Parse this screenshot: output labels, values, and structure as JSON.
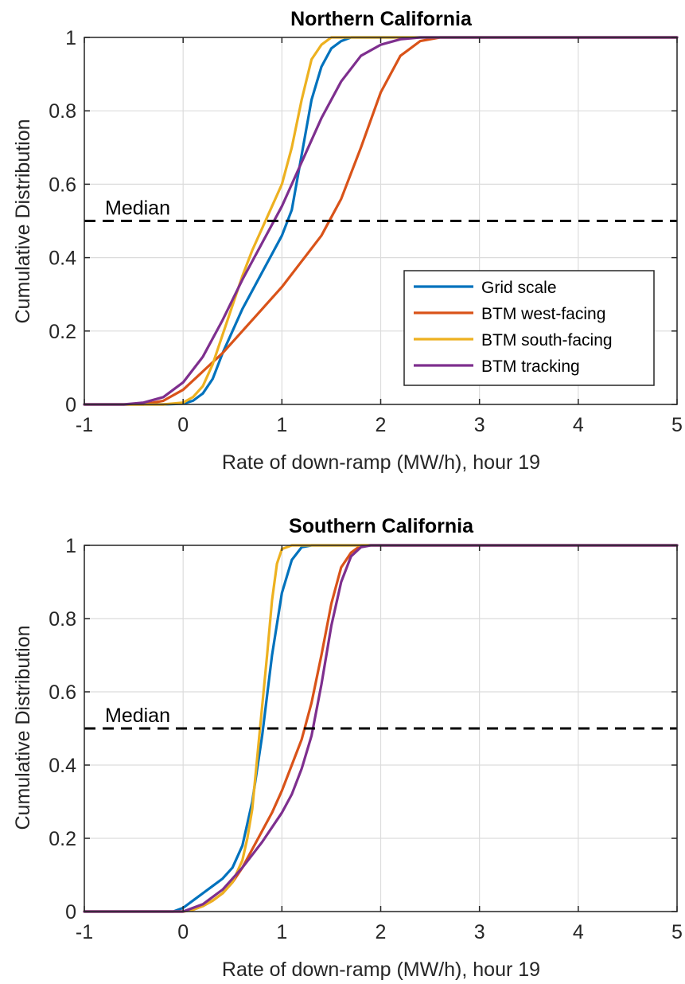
{
  "chart_data": [
    {
      "type": "line",
      "title": "Northern California",
      "xlabel": "Rate of down-ramp (MW/h), hour 19",
      "ylabel": "Cumulative Distribution",
      "xlim": [
        -1,
        5
      ],
      "ylim": [
        0,
        1
      ],
      "xticks": [
        "-1",
        "0",
        "1",
        "2",
        "3",
        "4",
        "5"
      ],
      "yticks": [
        "0",
        "0.2",
        "0.4",
        "0.6",
        "0.8",
        "1"
      ],
      "grid": true,
      "legend_position": "lower-right",
      "median_label": "Median",
      "median_value": 0.5,
      "series": [
        {
          "name": "Grid scale",
          "color": "#0072BD",
          "x": [
            -1,
            -0.2,
            0,
            0.1,
            0.2,
            0.3,
            0.4,
            0.5,
            0.6,
            0.7,
            0.8,
            0.9,
            1.0,
            1.1,
            1.2,
            1.3,
            1.4,
            1.5,
            1.6,
            1.7,
            1.8,
            2.0,
            5
          ],
          "y": [
            0,
            0,
            0.002,
            0.01,
            0.03,
            0.07,
            0.14,
            0.2,
            0.26,
            0.31,
            0.36,
            0.41,
            0.46,
            0.53,
            0.68,
            0.83,
            0.92,
            0.97,
            0.99,
            1.0,
            1.0,
            1.0,
            1.0
          ]
        },
        {
          "name": "BTM west-facing",
          "color": "#D95319",
          "x": [
            -1,
            -0.4,
            -0.2,
            0,
            0.2,
            0.4,
            0.6,
            0.8,
            1.0,
            1.2,
            1.4,
            1.6,
            1.8,
            2.0,
            2.2,
            2.4,
            2.6,
            2.8,
            5
          ],
          "y": [
            0,
            0,
            0.01,
            0.04,
            0.09,
            0.14,
            0.2,
            0.26,
            0.32,
            0.39,
            0.46,
            0.56,
            0.7,
            0.85,
            0.95,
            0.99,
            1.0,
            1.0,
            1.0
          ]
        },
        {
          "name": "BTM south-facing",
          "color": "#EDB120",
          "x": [
            -1,
            -0.2,
            0,
            0.1,
            0.2,
            0.3,
            0.4,
            0.5,
            0.6,
            0.7,
            0.8,
            0.9,
            1.0,
            1.1,
            1.2,
            1.3,
            1.4,
            1.5,
            1.6,
            1.7,
            5
          ],
          "y": [
            0,
            0,
            0.005,
            0.02,
            0.05,
            0.11,
            0.19,
            0.27,
            0.35,
            0.42,
            0.48,
            0.54,
            0.6,
            0.7,
            0.83,
            0.94,
            0.98,
            1.0,
            1.0,
            1.0,
            1.0
          ]
        },
        {
          "name": "BTM tracking",
          "color": "#7E2F8E",
          "x": [
            -1,
            -0.6,
            -0.4,
            -0.2,
            0,
            0.2,
            0.4,
            0.6,
            0.8,
            1.0,
            1.2,
            1.4,
            1.6,
            1.8,
            2.0,
            2.2,
            2.4,
            2.6,
            2.8,
            3.0,
            5
          ],
          "y": [
            0,
            0,
            0.005,
            0.02,
            0.06,
            0.13,
            0.23,
            0.34,
            0.44,
            0.54,
            0.66,
            0.78,
            0.88,
            0.95,
            0.98,
            0.995,
            1.0,
            1.0,
            1.0,
            1.0,
            1.0
          ]
        }
      ]
    },
    {
      "type": "line",
      "title": "Southern California",
      "xlabel": "Rate of down-ramp (MW/h), hour 19",
      "ylabel": "Cumulative Distribution",
      "xlim": [
        -1,
        5
      ],
      "ylim": [
        0,
        1
      ],
      "xticks": [
        "-1",
        "0",
        "1",
        "2",
        "3",
        "4",
        "5"
      ],
      "yticks": [
        "0",
        "0.2",
        "0.4",
        "0.6",
        "0.8",
        "1"
      ],
      "grid": true,
      "median_label": "Median",
      "median_value": 0.5,
      "series": [
        {
          "name": "Grid scale",
          "color": "#0072BD",
          "x": [
            -1,
            -0.1,
            0,
            0.1,
            0.2,
            0.3,
            0.4,
            0.5,
            0.6,
            0.7,
            0.8,
            0.9,
            1.0,
            1.1,
            1.2,
            1.3,
            5
          ],
          "y": [
            0,
            0,
            0.01,
            0.03,
            0.05,
            0.07,
            0.09,
            0.12,
            0.18,
            0.3,
            0.48,
            0.7,
            0.87,
            0.96,
            0.995,
            1.0,
            1.0
          ]
        },
        {
          "name": "BTM west-facing",
          "color": "#D95319",
          "x": [
            -1,
            0,
            0.1,
            0.2,
            0.3,
            0.4,
            0.5,
            0.6,
            0.7,
            0.8,
            0.9,
            1.0,
            1.1,
            1.2,
            1.3,
            1.4,
            1.5,
            1.6,
            1.7,
            1.8,
            1.9,
            5
          ],
          "y": [
            0,
            0,
            0.005,
            0.015,
            0.03,
            0.05,
            0.08,
            0.12,
            0.17,
            0.22,
            0.27,
            0.33,
            0.4,
            0.47,
            0.57,
            0.7,
            0.84,
            0.94,
            0.98,
            1.0,
            1.0,
            1.0
          ]
        },
        {
          "name": "BTM south-facing",
          "color": "#EDB120",
          "x": [
            -1,
            0,
            0.1,
            0.2,
            0.3,
            0.4,
            0.5,
            0.6,
            0.65,
            0.7,
            0.75,
            0.8,
            0.85,
            0.9,
            0.95,
            1.0,
            1.1,
            1.2,
            1.3,
            5
          ],
          "y": [
            0,
            0,
            0.005,
            0.015,
            0.03,
            0.05,
            0.08,
            0.14,
            0.2,
            0.28,
            0.42,
            0.56,
            0.7,
            0.85,
            0.95,
            0.99,
            1.0,
            1.0,
            1.0,
            1.0
          ]
        },
        {
          "name": "BTM tracking",
          "color": "#7E2F8E",
          "x": [
            -1,
            0,
            0.2,
            0.4,
            0.6,
            0.8,
            1.0,
            1.1,
            1.2,
            1.3,
            1.4,
            1.5,
            1.6,
            1.7,
            1.8,
            1.9,
            2.0,
            5
          ],
          "y": [
            0,
            0,
            0.02,
            0.06,
            0.12,
            0.19,
            0.27,
            0.32,
            0.39,
            0.48,
            0.62,
            0.78,
            0.9,
            0.97,
            0.995,
            1.0,
            1.0,
            1.0
          ]
        }
      ]
    }
  ]
}
